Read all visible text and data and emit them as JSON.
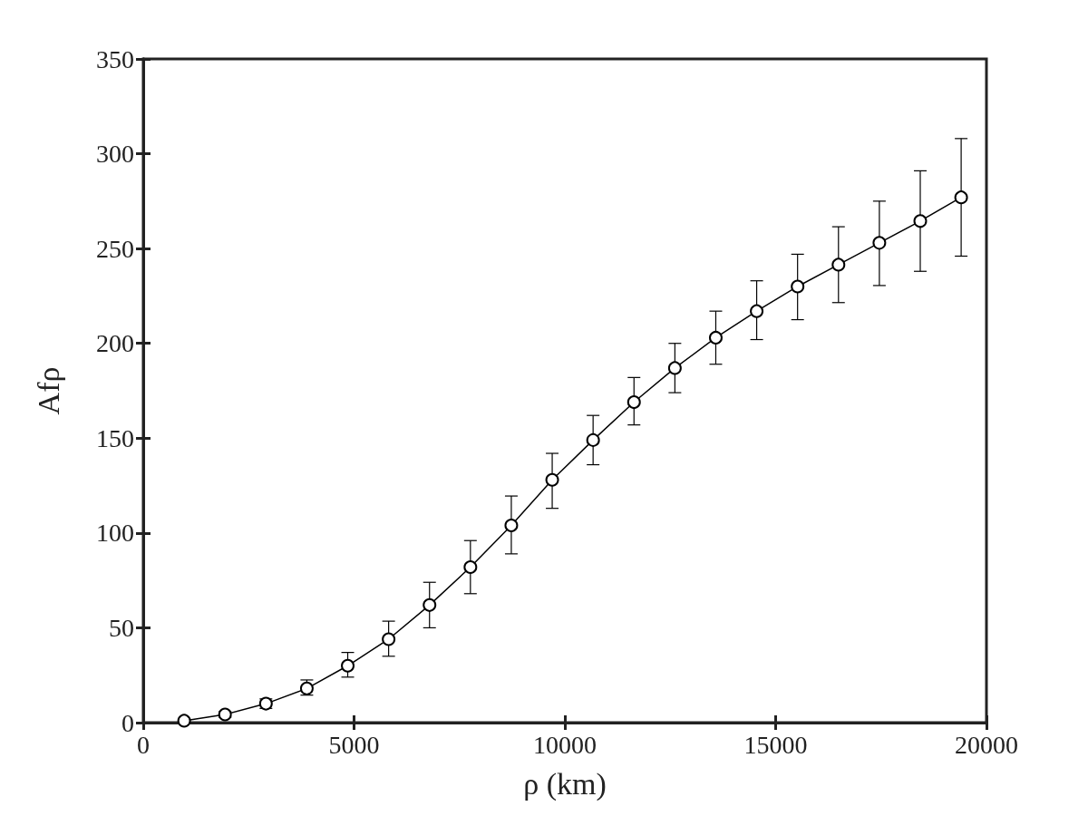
{
  "chart_data": {
    "type": "line",
    "xlabel": "ρ (km)",
    "ylabel": "Afρ",
    "x": [
      970,
      1940,
      2910,
      3880,
      4850,
      5820,
      6790,
      7760,
      8730,
      9700,
      10670,
      11640,
      12610,
      13580,
      14550,
      15520,
      16490,
      17460,
      18430,
      19400
    ],
    "values": [
      1,
      4.3,
      10,
      18,
      30,
      44,
      62,
      82,
      104,
      128,
      149,
      169,
      187,
      203,
      217,
      230,
      241.5,
      253,
      264.5,
      277
    ],
    "errors": [
      1,
      1.5,
      2.5,
      [
        14.5,
        22.5
      ],
      [
        24,
        37
      ],
      [
        35,
        53.5
      ],
      [
        50,
        74
      ],
      [
        68,
        96
      ],
      [
        89,
        119.5
      ],
      [
        113,
        142
      ],
      [
        136,
        162
      ],
      [
        157,
        182
      ],
      [
        174,
        200
      ],
      [
        189,
        217
      ],
      [
        202,
        233
      ],
      [
        212.5,
        247
      ],
      [
        221.5,
        261.5
      ],
      [
        230.5,
        275
      ],
      [
        238,
        291
      ],
      [
        246,
        308
      ]
    ],
    "color": "#000000",
    "marker": "circle",
    "line_style": "solid",
    "xlim": [
      0,
      20000
    ],
    "xticks": [
      0,
      5000,
      10000,
      15000,
      20000
    ],
    "ylim": [
      0,
      350
    ],
    "yticks": [
      0,
      50,
      100,
      150,
      200,
      250,
      300,
      350
    ],
    "grid": false
  }
}
